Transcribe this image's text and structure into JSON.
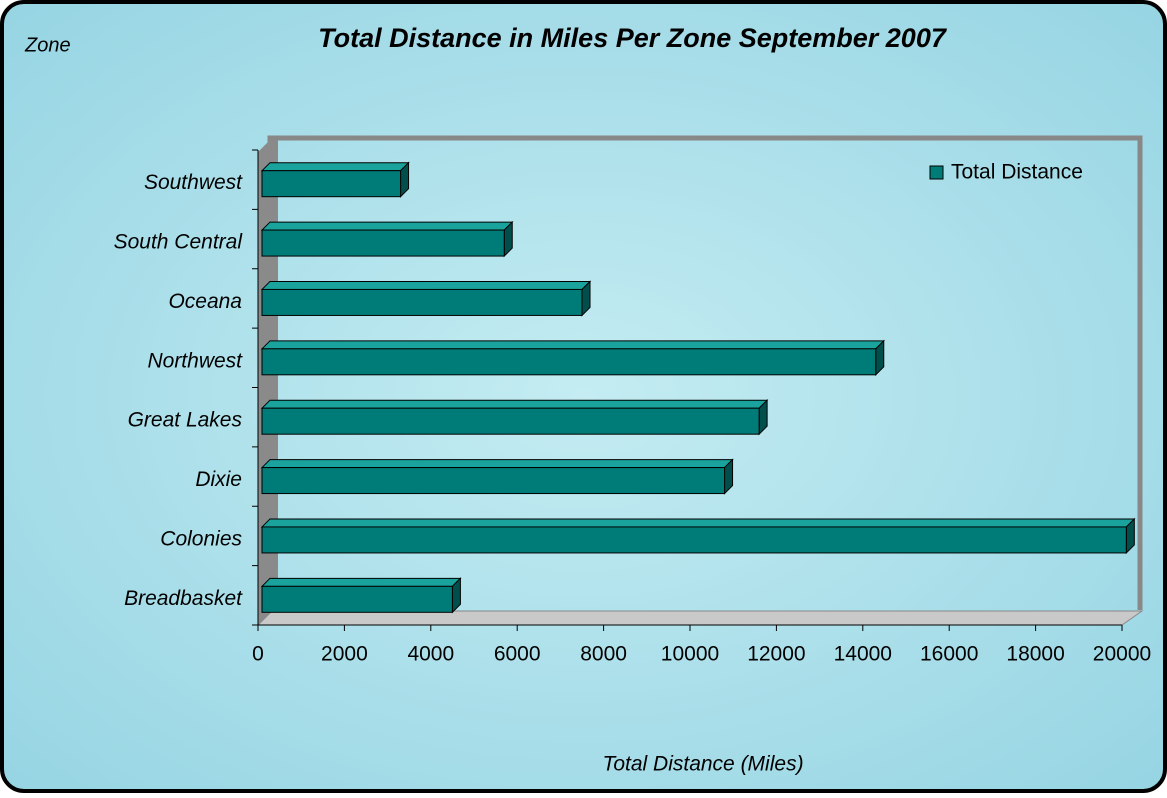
{
  "chart_data": {
    "type": "bar",
    "orientation": "horizontal",
    "title": "Total Distance in Miles Per Zone September 2007",
    "y_axis_label": "Zone",
    "x_axis_label": "Total Distance (Miles)",
    "categories": [
      "Breadbasket",
      "Colonies",
      "Dixie",
      "Great Lakes",
      "Northwest",
      "Oceana",
      "South Central",
      "Southwest"
    ],
    "series": [
      {
        "name": "Total Distance",
        "color": "#007c78",
        "values": [
          4500,
          20100,
          10800,
          11600,
          14300,
          7500,
          5700,
          3300
        ]
      }
    ],
    "xlim": [
      0,
      20000
    ],
    "xticks": [
      0,
      2000,
      4000,
      6000,
      8000,
      10000,
      12000,
      14000,
      16000,
      18000,
      20000
    ],
    "legend": "upper right"
  }
}
